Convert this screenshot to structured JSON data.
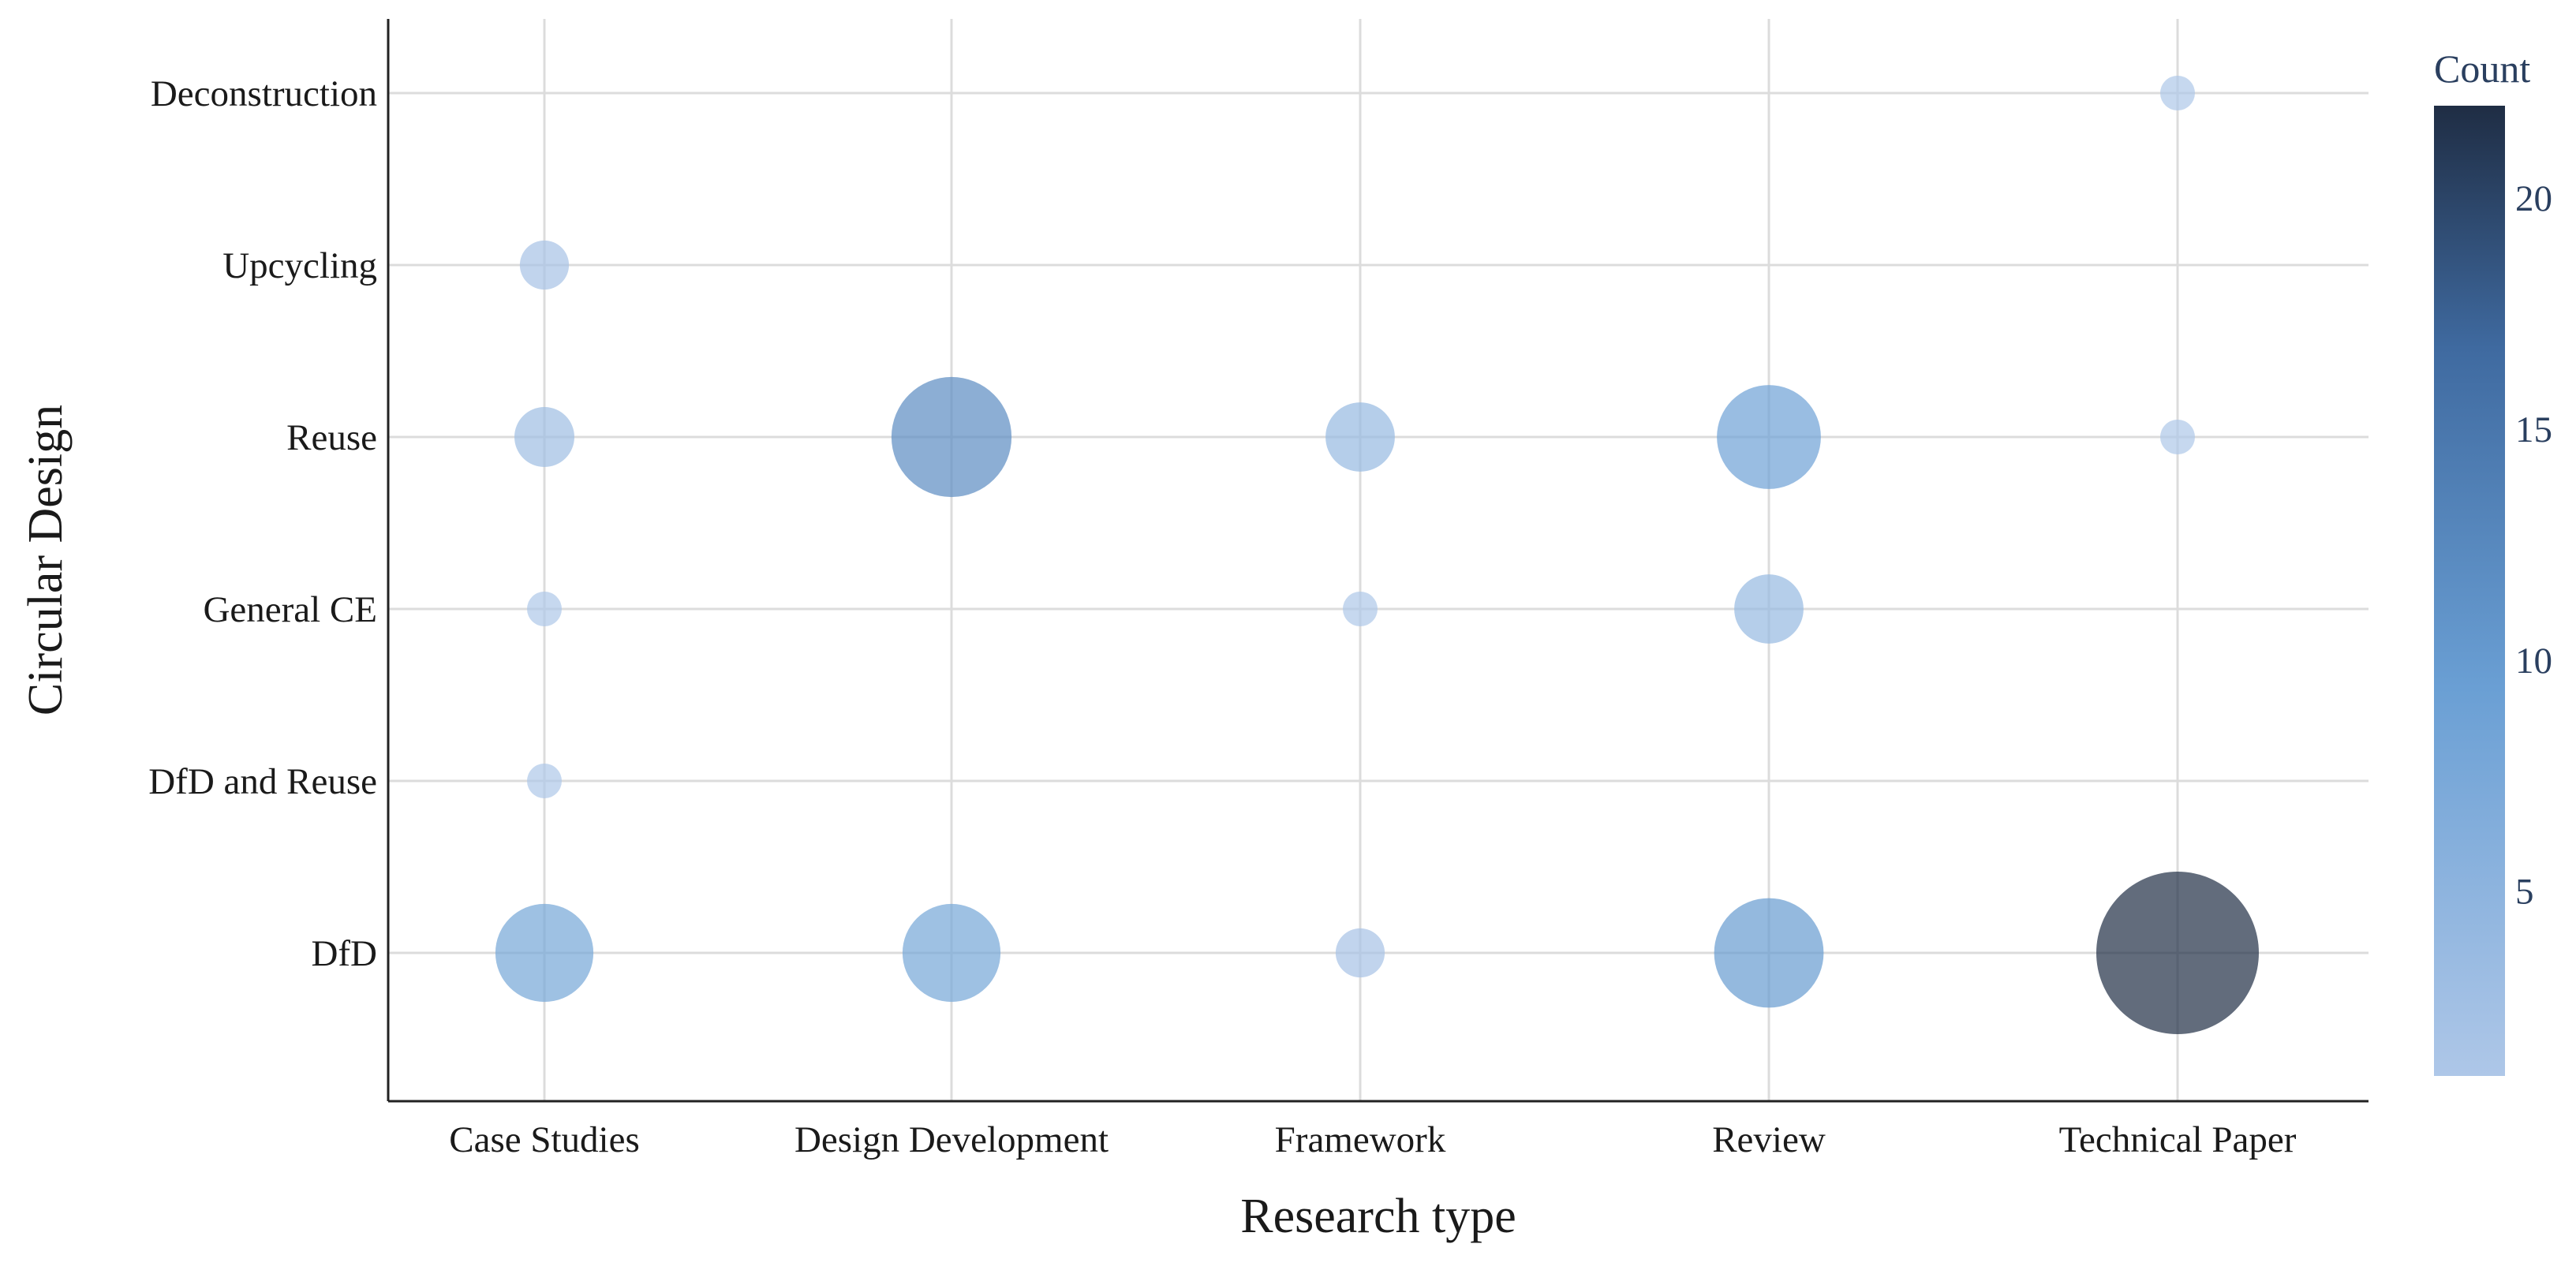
{
  "chart_data": {
    "type": "scatter",
    "subtype": "bubble",
    "title": "",
    "xlabel": "Research type",
    "ylabel": "Circular Design",
    "x_categories": [
      "Case Studies",
      "Design Development",
      "Framework",
      "Review",
      "Technical Paper"
    ],
    "y_categories": [
      "DfD",
      "DfD and Reuse",
      "General CE",
      "Reuse",
      "Upcycling",
      "Deconstruction"
    ],
    "points": [
      {
        "x": "Case Studies",
        "y": "DfD",
        "count": 8
      },
      {
        "x": "Case Studies",
        "y": "DfD and Reuse",
        "count": 1
      },
      {
        "x": "Case Studies",
        "y": "General CE",
        "count": 1
      },
      {
        "x": "Case Studies",
        "y": "Reuse",
        "count": 3
      },
      {
        "x": "Case Studies",
        "y": "Upcycling",
        "count": 2
      },
      {
        "x": "Design Development",
        "y": "DfD",
        "count": 8
      },
      {
        "x": "Design Development",
        "y": "Reuse",
        "count": 12
      },
      {
        "x": "Framework",
        "y": "DfD",
        "count": 2
      },
      {
        "x": "Framework",
        "y": "General CE",
        "count": 1
      },
      {
        "x": "Framework",
        "y": "Reuse",
        "count": 4
      },
      {
        "x": "Review",
        "y": "DfD",
        "count": 10
      },
      {
        "x": "Review",
        "y": "General CE",
        "count": 4
      },
      {
        "x": "Review",
        "y": "Reuse",
        "count": 9
      },
      {
        "x": "Technical Paper",
        "y": "DfD",
        "count": 22
      },
      {
        "x": "Technical Paper",
        "y": "Reuse",
        "count": 1
      },
      {
        "x": "Technical Paper",
        "y": "Deconstruction",
        "count": 1
      }
    ],
    "colorbar": {
      "title": "Count",
      "range": [
        1,
        22
      ],
      "ticks": [
        5,
        10,
        15,
        20
      ],
      "colors": [
        "#aec7e8",
        "#6a9fd4",
        "#3f6aa0",
        "#1f2d44"
      ]
    },
    "marker_opacity": 0.7,
    "grid": true,
    "legend": "none"
  }
}
